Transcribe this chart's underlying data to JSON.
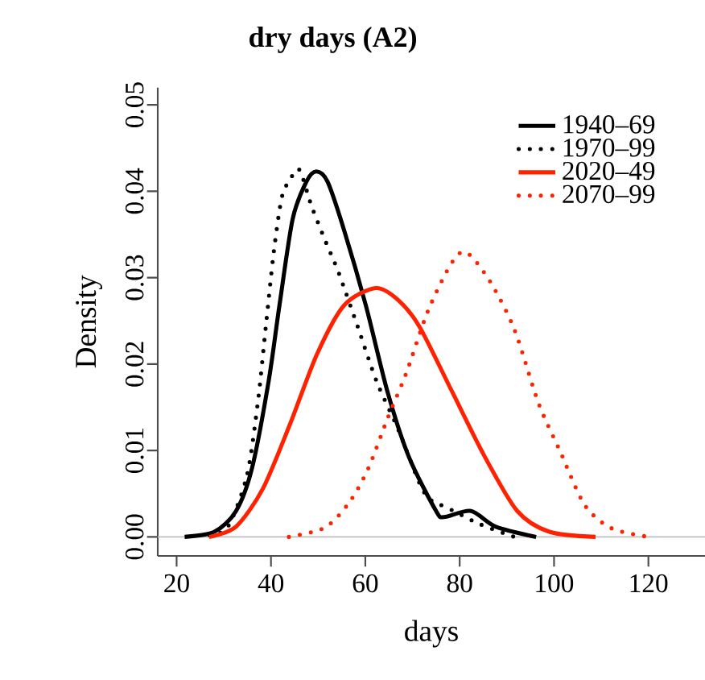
{
  "chart_data": {
    "type": "line",
    "title": "dry days (A2)",
    "xlabel": "days",
    "ylabel": "Density",
    "xlim": [
      16,
      132
    ],
    "ylim": [
      -0.0022,
      0.052
    ],
    "xticks": [
      20,
      40,
      60,
      80,
      100,
      120
    ],
    "yticks": [
      {
        "value": 0,
        "label": "0.00"
      },
      {
        "value": 0.01,
        "label": "0.01"
      },
      {
        "value": 0.02,
        "label": "0.02"
      },
      {
        "value": 0.03,
        "label": "0.03"
      },
      {
        "value": 0.04,
        "label": "0.04"
      },
      {
        "value": 0.05,
        "label": "0.05"
      }
    ],
    "grid": false,
    "legend": "top right",
    "marker": "none",
    "ref_lines": [
      {
        "axis": "y",
        "value": 0,
        "color": "#bebebe",
        "line_style": "solid"
      }
    ],
    "series": [
      {
        "name": "1940–69",
        "color": "#000000",
        "line_style": "solid",
        "x": [
          21.7,
          28,
          32.6,
          36,
          39.5,
          41.8,
          44.6,
          47.5,
          49.6,
          52,
          55.5,
          60.1,
          64.7,
          69.2,
          75,
          76.7,
          82.4,
          87.6,
          96.2
        ],
        "values": [
          0.0,
          0.0006,
          0.003,
          0.008,
          0.018,
          0.0268,
          0.0368,
          0.0411,
          0.0423,
          0.0411,
          0.0355,
          0.0268,
          0.0168,
          0.0093,
          0.003,
          0.0023,
          0.003,
          0.0012,
          0.0
        ]
      },
      {
        "name": "1970–99",
        "color": "#000000",
        "line_style": "dotted",
        "x": [
          27,
          30.9,
          34.9,
          37.2,
          38.9,
          40.6,
          42.3,
          44.1,
          46,
          48.6,
          51.5,
          54.4,
          58.4,
          62.4,
          67,
          71.5,
          73.8,
          77.3,
          84.2,
          91.6
        ],
        "values": [
          0.0002,
          0.0012,
          0.0071,
          0.0155,
          0.0243,
          0.033,
          0.0393,
          0.0414,
          0.0425,
          0.0383,
          0.0343,
          0.0305,
          0.0243,
          0.018,
          0.0124,
          0.0062,
          0.0043,
          0.0034,
          0.0015,
          0.0
        ]
      },
      {
        "name": "2020–49",
        "color": "#ff2200",
        "line_style": "solid",
        "x": [
          26.9,
          32.6,
          38.3,
          44,
          49.8,
          55.5,
          62.2,
          67,
          71.5,
          78.4,
          85.3,
          92.2,
          99,
          108.8
        ],
        "values": [
          0.0,
          0.0012,
          0.0056,
          0.013,
          0.0212,
          0.0268,
          0.0288,
          0.0274,
          0.0243,
          0.0168,
          0.0093,
          0.003,
          0.0006,
          0.0
        ]
      },
      {
        "name": "2070–99",
        "color": "#ff2200",
        "line_style": "dotted",
        "x": [
          43.8,
          51.5,
          56.6,
          60.6,
          64.7,
          68.7,
          73.3,
          78.4,
          81.5,
          86.4,
          91.6,
          96.7,
          101.3,
          106.5,
          112.2,
          120.2
        ],
        "values": [
          0.0,
          0.0011,
          0.004,
          0.0079,
          0.0137,
          0.019,
          0.0262,
          0.0318,
          0.0329,
          0.0296,
          0.024,
          0.0155,
          0.0099,
          0.0037,
          0.001,
          0.0
        ]
      }
    ]
  }
}
